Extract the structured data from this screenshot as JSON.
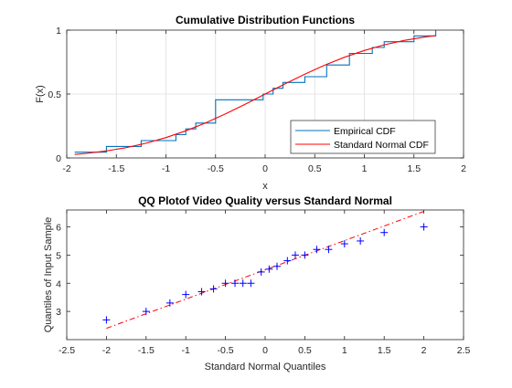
{
  "chart_data": [
    {
      "type": "line",
      "title": "Cumulative Distribution Functions",
      "xlabel": "x",
      "ylabel": "F(x)",
      "xlim": [
        -2,
        2
      ],
      "ylim": [
        0,
        1
      ],
      "grid": true,
      "x_ticks": [
        "-2",
        "-1.5",
        "-1",
        "-0.5",
        "0",
        "0.5",
        "1",
        "1.5",
        "2"
      ],
      "y_ticks": [
        "0",
        "0.5",
        "1"
      ],
      "legend": {
        "position": "bottom-right"
      },
      "series": [
        {
          "name": "Empirical CDF",
          "color": "#0072BD",
          "style": "stairs",
          "x": [
            -1.92,
            -1.6,
            -1.6,
            -1.25,
            -1.25,
            -0.9,
            -0.9,
            -0.8,
            -0.8,
            -0.7,
            -0.7,
            -0.5,
            -0.5,
            -0.02,
            -0.02,
            0.08,
            0.08,
            0.18,
            0.18,
            0.22,
            0.22,
            0.4,
            0.4,
            0.62,
            0.62,
            0.85,
            0.85,
            1.08,
            1.08,
            1.2,
            1.2,
            1.5,
            1.5,
            1.72,
            1.72
          ],
          "y": [
            0.045,
            0.045,
            0.09,
            0.09,
            0.136,
            0.136,
            0.182,
            0.182,
            0.227,
            0.227,
            0.273,
            0.273,
            0.455,
            0.455,
            0.5,
            0.5,
            0.545,
            0.545,
            0.591,
            0.591,
            0.591,
            0.591,
            0.636,
            0.636,
            0.727,
            0.727,
            0.818,
            0.818,
            0.864,
            0.864,
            0.909,
            0.909,
            0.955,
            0.955,
            1.0
          ]
        },
        {
          "name": "Standard Normal CDF",
          "color": "#FF0000",
          "style": "line",
          "x": [
            -1.92,
            -1.8,
            -1.6,
            -1.4,
            -1.2,
            -1.0,
            -0.8,
            -0.6,
            -0.4,
            -0.2,
            0.0,
            0.2,
            0.4,
            0.6,
            0.8,
            1.0,
            1.2,
            1.4,
            1.6,
            1.72
          ],
          "y": [
            0.027,
            0.036,
            0.055,
            0.081,
            0.115,
            0.159,
            0.212,
            0.274,
            0.345,
            0.421,
            0.5,
            0.579,
            0.655,
            0.726,
            0.788,
            0.841,
            0.885,
            0.919,
            0.945,
            0.957
          ]
        }
      ]
    },
    {
      "type": "scatter",
      "title": "QQ Plotof Video Quality versus Standard Normal",
      "xlabel": "Standard Normal Quantiles",
      "ylabel": "Quantiles of Input Sample",
      "xlim": [
        -2.5,
        2.5
      ],
      "ylim": [
        2,
        6.6
      ],
      "grid": false,
      "x_ticks": [
        "-2.5",
        "-2",
        "-1.5",
        "-1",
        "-0.5",
        "0",
        "0.5",
        "1",
        "1.5",
        "2",
        "2.5"
      ],
      "y_ticks": [
        "3",
        "4",
        "5",
        "6"
      ],
      "series": [
        {
          "color": "#0000FF",
          "marker": "+",
          "x": [
            -2.0,
            -1.5,
            -1.2,
            -1.0,
            -0.8,
            -0.65,
            -0.5,
            -0.38,
            -0.28,
            -0.18,
            -0.05,
            0.05,
            0.15,
            0.28,
            0.38,
            0.5,
            0.65,
            0.8,
            1.0,
            1.2,
            1.5,
            2.0
          ],
          "y": [
            2.7,
            3.0,
            3.3,
            3.6,
            3.7,
            3.8,
            4.0,
            4.0,
            4.0,
            4.0,
            4.4,
            4.5,
            4.6,
            4.8,
            5.0,
            5.0,
            5.2,
            5.2,
            5.4,
            5.5,
            5.8,
            6.0
          ]
        },
        {
          "color": "#FF0000",
          "style": "dash-dot",
          "x": [
            -2.0,
            2.0
          ],
          "y": [
            2.4,
            6.55
          ]
        }
      ]
    }
  ]
}
